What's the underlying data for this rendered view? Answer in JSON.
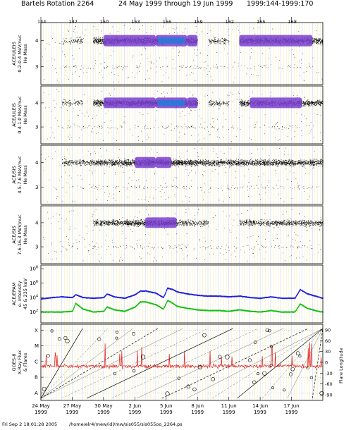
{
  "header": {
    "rotation": "Bartels Rotation 2264",
    "date_range": "24 May 1999 through 19 Jun 1999",
    "doy_range": "1999:144-1999:170"
  },
  "footer": {
    "timestamp": "Fri Sep  2 18:01:28 2005",
    "path": "/home/elr4/mew/idl/mw/sis055/sis055oo_2264.ps"
  },
  "colors": {
    "scatter": "#000000",
    "density_low": "#7a3fd0",
    "density_high": "#2a7ad8",
    "grid_yellow": "#e8d24a",
    "grid_blue": "#8fa8e0",
    "electrons_high": "#2020e0",
    "electrons_low": "#10c010",
    "xray": "#e02020"
  },
  "chart_data": {
    "type": "scatter",
    "x_axis": {
      "range_doy": [
        144,
        171
      ],
      "top_ticks": [
        "144",
        "147",
        "150",
        "153",
        "156",
        "159",
        "162",
        "165",
        "168"
      ],
      "top_tick_doys": [
        144,
        147,
        150,
        153,
        156,
        159,
        162,
        165,
        168
      ],
      "bottom_labels": [
        {
          "date": "24 May",
          "year": "1999",
          "doy": 144
        },
        {
          "date": "27 May",
          "year": "1999",
          "doy": 147
        },
        {
          "date": "30 May",
          "year": "1999",
          "doy": 150
        },
        {
          "date": "2 Jun",
          "year": "1999",
          "doy": 153
        },
        {
          "date": "5 Jun",
          "year": "1999",
          "doy": 156
        },
        {
          "date": "8 Jun",
          "year": "1999",
          "doy": 159
        },
        {
          "date": "11 Jun",
          "year": "1999",
          "doy": 162
        },
        {
          "date": "14 Jun",
          "year": "1999",
          "doy": 165
        },
        {
          "date": "17 Jun",
          "year": "1999",
          "doy": 168
        }
      ]
    },
    "panels": [
      {
        "id": "uleis-low",
        "ylabel": [
          "ACE/ULEIS",
          "0.2-0.4 MeV/nuc",
          "He Mass"
        ],
        "yticks": [
          "3",
          "4"
        ],
        "ylim": [
          2.3,
          4.7
        ],
        "note": "He mass band near 4; dense band doy 149-159 and 163-171"
      },
      {
        "id": "uleis-high",
        "ylabel": [
          "ACE/ULEIS",
          "0.4-1.0 MeV/nuc",
          "He Mass"
        ],
        "yticks": [
          "3",
          "4"
        ],
        "ylim": [
          2.3,
          4.7
        ]
      },
      {
        "id": "sis-low",
        "ylabel": [
          "ACE/SIS",
          "4.5-7.6 MeV/nuc",
          "He Mass"
        ],
        "yticks": [
          "3",
          "4"
        ],
        "ylim": [
          2.3,
          4.7
        ]
      },
      {
        "id": "sis-high",
        "ylabel": [
          "ACE/SIS",
          "7.6-16.3 MeV/nuc",
          "He Mass"
        ],
        "yticks": [
          "3",
          "4"
        ],
        "ylim": [
          2.3,
          4.7
        ]
      },
      {
        "id": "epam",
        "ylabel": [
          "ACE/EPAM",
          "e- Intensity",
          "45 & 235 keV"
        ],
        "yticks": [
          "10^2",
          "10^4",
          "10^6",
          "10^8"
        ],
        "ylim_log10": [
          0.5,
          8.5
        ],
        "series": [
          {
            "name": "45 keV",
            "x": [
              144,
              145,
              146,
              147,
              147.3,
              148,
              149,
              150,
              150.3,
              151,
              152,
              153,
              153.5,
              154,
              155,
              155.7,
              156.1,
              156.6,
              157,
              158,
              159,
              160,
              161,
              162,
              163,
              164,
              165,
              166,
              167,
              168,
              168.3,
              168.8,
              169.5,
              170.5,
              171
            ],
            "log10": [
              3.8,
              4.0,
              4.1,
              4.0,
              4.4,
              4.0,
              3.9,
              4.0,
              4.5,
              4.1,
              3.9,
              4.4,
              4.9,
              4.9,
              4.6,
              4.0,
              5.3,
              5.1,
              4.8,
              4.5,
              4.3,
              4.2,
              4.2,
              4.1,
              4.2,
              4.0,
              3.9,
              4.1,
              3.9,
              3.9,
              3.9,
              5.1,
              4.5,
              4.1,
              3.9
            ]
          },
          {
            "name": "235 keV",
            "x": [
              144,
              145,
              146,
              147,
              147.3,
              148,
              149,
              150,
              150.3,
              151,
              152,
              153,
              153.5,
              154,
              155,
              155.7,
              156.1,
              156.6,
              157,
              158,
              159,
              160,
              161,
              162,
              163,
              164,
              165,
              166,
              167,
              168,
              168.3,
              168.8,
              169.5,
              170.5,
              171
            ],
            "log10": [
              2.0,
              2.0,
              2.0,
              2.1,
              3.2,
              2.4,
              2.0,
              2.1,
              2.7,
              2.3,
              2.1,
              2.7,
              3.4,
              3.4,
              3.0,
              2.4,
              3.6,
              3.2,
              2.8,
              2.5,
              2.3,
              2.2,
              2.2,
              2.1,
              2.3,
              2.1,
              2.0,
              2.2,
              2.0,
              2.0,
              2.0,
              3.1,
              2.5,
              2.1,
              2.0
            ]
          }
        ]
      },
      {
        "id": "goes",
        "ylabel": [
          "GOES-8",
          "X-Ray Flux",
          "& Flares"
        ],
        "yticks_left": [
          "A",
          "B",
          "C",
          "M",
          "X"
        ],
        "yticks_right": [
          "90",
          "60",
          "30",
          "0",
          "-30",
          "-60",
          "-90"
        ],
        "ylabel_right": "Flare Longitude",
        "series": [
          {
            "name": "X-Ray Flux",
            "note": "near C level with spikes to M",
            "x": [
              144,
              148,
              152,
              156,
              160,
              164,
              168,
              171
            ],
            "level": [
              2.0,
              2.1,
              2.0,
              2.2,
              2.0,
              2.1,
              2.0,
              2.1
            ]
          }
        ]
      }
    ]
  }
}
